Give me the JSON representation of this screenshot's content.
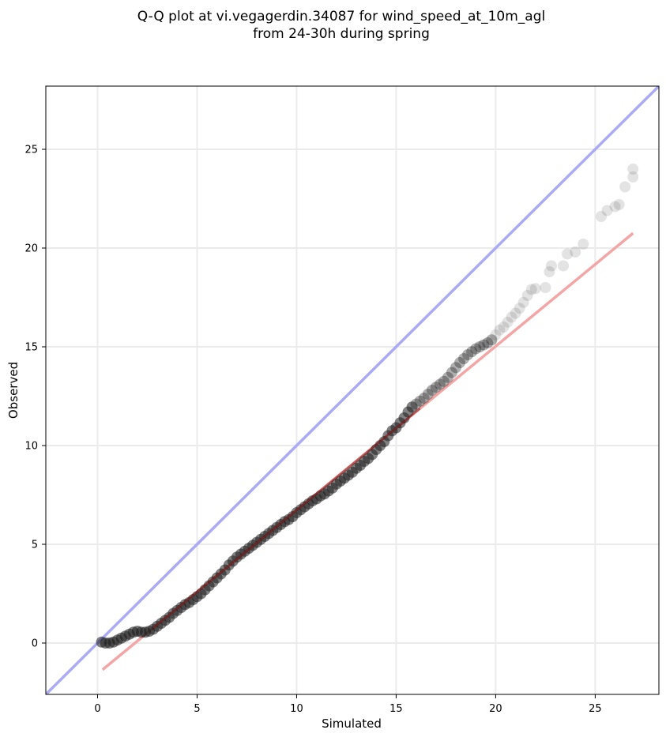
{
  "chart_data": {
    "type": "scatter",
    "title_lines": [
      "Q-Q plot at vi.vegagerdin.34087 for wind_speed_at_10m_agl",
      "from 24-30h during spring"
    ],
    "xlabel": "Simulated",
    "ylabel": "Observed",
    "xlim": [
      -2.6,
      28.2
    ],
    "ylim": [
      -2.6,
      28.2
    ],
    "x_ticks": [
      0,
      5,
      10,
      15,
      20,
      25
    ],
    "y_ticks": [
      0,
      5,
      10,
      15,
      20,
      25
    ],
    "grid": true,
    "colors": {
      "points": "#1a1a1a",
      "identity_line": "#aaaaf5",
      "fit_line": "#f4a5a5",
      "fit_line_dark": "#8b1a1a",
      "grid": "#ebebeb"
    },
    "identity_line": [
      [
        -2.6,
        -2.6
      ],
      [
        28.2,
        28.2
      ]
    ],
    "fit_line": [
      [
        0.25,
        -1.35
      ],
      [
        26.9,
        20.75
      ]
    ],
    "points": [
      [
        0.2,
        0.05
      ],
      [
        0.4,
        0.0
      ],
      [
        0.6,
        0.0
      ],
      [
        0.8,
        0.05
      ],
      [
        1.0,
        0.15
      ],
      [
        1.2,
        0.25
      ],
      [
        1.4,
        0.35
      ],
      [
        1.6,
        0.45
      ],
      [
        1.8,
        0.55
      ],
      [
        2.0,
        0.6
      ],
      [
        2.2,
        0.55
      ],
      [
        2.4,
        0.55
      ],
      [
        2.6,
        0.6
      ],
      [
        2.8,
        0.7
      ],
      [
        3.0,
        0.85
      ],
      [
        3.2,
        1.0
      ],
      [
        3.4,
        1.15
      ],
      [
        3.6,
        1.3
      ],
      [
        3.8,
        1.5
      ],
      [
        4.0,
        1.65
      ],
      [
        4.2,
        1.8
      ],
      [
        4.4,
        1.95
      ],
      [
        4.6,
        2.05
      ],
      [
        4.8,
        2.2
      ],
      [
        5.0,
        2.35
      ],
      [
        5.2,
        2.5
      ],
      [
        5.4,
        2.7
      ],
      [
        5.6,
        2.9
      ],
      [
        5.8,
        3.1
      ],
      [
        6.0,
        3.3
      ],
      [
        6.2,
        3.5
      ],
      [
        6.4,
        3.7
      ],
      [
        6.6,
        3.95
      ],
      [
        6.8,
        4.15
      ],
      [
        7.0,
        4.35
      ],
      [
        7.2,
        4.5
      ],
      [
        7.4,
        4.65
      ],
      [
        7.6,
        4.8
      ],
      [
        7.8,
        4.95
      ],
      [
        8.0,
        5.1
      ],
      [
        8.2,
        5.25
      ],
      [
        8.4,
        5.4
      ],
      [
        8.6,
        5.55
      ],
      [
        8.8,
        5.7
      ],
      [
        9.0,
        5.85
      ],
      [
        9.2,
        6.0
      ],
      [
        9.4,
        6.15
      ],
      [
        9.6,
        6.25
      ],
      [
        9.8,
        6.4
      ],
      [
        10.0,
        6.6
      ],
      [
        10.2,
        6.75
      ],
      [
        10.4,
        6.9
      ],
      [
        10.6,
        7.05
      ],
      [
        10.8,
        7.2
      ],
      [
        11.0,
        7.3
      ],
      [
        11.2,
        7.45
      ],
      [
        11.4,
        7.55
      ],
      [
        11.6,
        7.7
      ],
      [
        11.8,
        7.85
      ],
      [
        12.0,
        8.05
      ],
      [
        12.2,
        8.2
      ],
      [
        12.4,
        8.35
      ],
      [
        12.6,
        8.5
      ],
      [
        12.8,
        8.65
      ],
      [
        13.0,
        8.85
      ],
      [
        13.2,
        9.0
      ],
      [
        13.4,
        9.2
      ],
      [
        13.6,
        9.35
      ],
      [
        13.8,
        9.55
      ],
      [
        14.0,
        9.8
      ],
      [
        14.2,
        10.0
      ],
      [
        14.4,
        10.2
      ],
      [
        14.6,
        10.5
      ],
      [
        14.8,
        10.75
      ],
      [
        15.0,
        10.9
      ],
      [
        15.2,
        11.15
      ],
      [
        15.4,
        11.4
      ],
      [
        15.6,
        11.7
      ],
      [
        15.8,
        11.95
      ],
      [
        16.0,
        12.1
      ],
      [
        16.2,
        12.25
      ],
      [
        16.4,
        12.4
      ],
      [
        16.6,
        12.6
      ],
      [
        16.8,
        12.8
      ],
      [
        17.0,
        12.95
      ],
      [
        17.2,
        13.1
      ],
      [
        17.4,
        13.25
      ],
      [
        17.6,
        13.45
      ],
      [
        17.8,
        13.7
      ],
      [
        18.0,
        13.95
      ],
      [
        18.2,
        14.2
      ],
      [
        18.4,
        14.4
      ],
      [
        18.6,
        14.6
      ],
      [
        18.8,
        14.75
      ],
      [
        19.0,
        14.9
      ],
      [
        19.2,
        15.0
      ],
      [
        19.4,
        15.1
      ],
      [
        19.6,
        15.2
      ],
      [
        19.8,
        15.35
      ],
      [
        20.0,
        15.6
      ],
      [
        20.2,
        15.85
      ],
      [
        20.4,
        16.0
      ],
      [
        20.6,
        16.25
      ],
      [
        20.8,
        16.5
      ],
      [
        21.0,
        16.7
      ],
      [
        21.2,
        16.95
      ],
      [
        21.4,
        17.25
      ],
      [
        21.6,
        17.6
      ],
      [
        21.8,
        17.9
      ],
      [
        22.0,
        17.95
      ],
      [
        22.5,
        18.0
      ],
      [
        22.7,
        18.8
      ],
      [
        22.8,
        19.1
      ],
      [
        23.4,
        19.1
      ],
      [
        23.6,
        19.7
      ],
      [
        24.0,
        19.8
      ],
      [
        24.4,
        20.2
      ],
      [
        25.3,
        21.6
      ],
      [
        25.6,
        21.9
      ],
      [
        26.0,
        22.1
      ],
      [
        26.2,
        22.2
      ],
      [
        26.5,
        23.1
      ],
      [
        26.9,
        23.6
      ],
      [
        26.9,
        24.0
      ]
    ]
  }
}
